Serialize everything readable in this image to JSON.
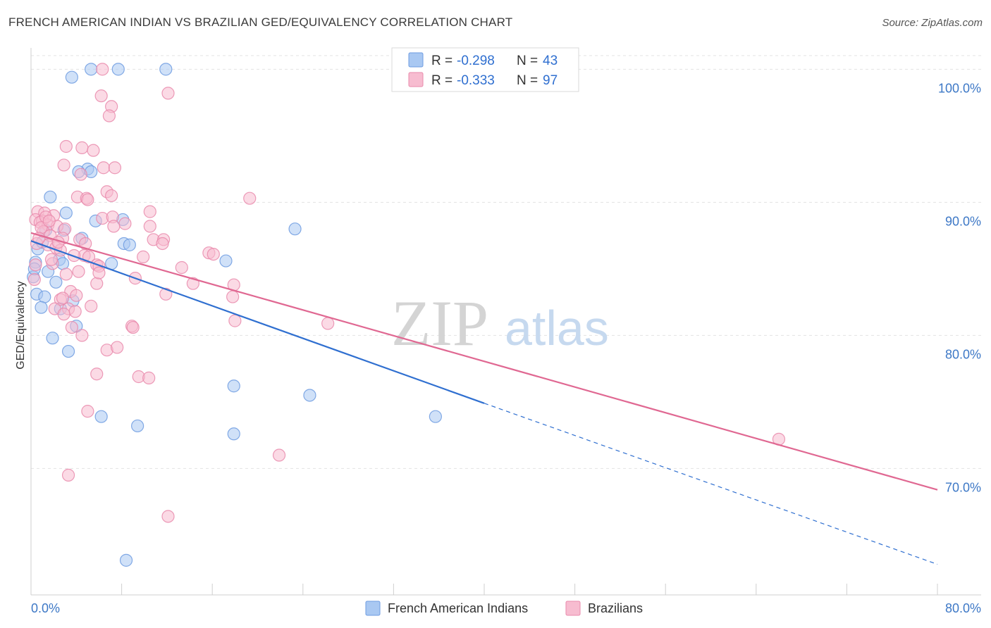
{
  "title": "FRENCH AMERICAN INDIAN VS BRAZILIAN GED/EQUIVALENCY CORRELATION CHART",
  "source": "Source: ZipAtlas.com",
  "watermark": {
    "zip": "ZIP",
    "atlas": "atlas"
  },
  "legend": {
    "rows": [
      {
        "r_label": "R =",
        "r_value": "-0.298",
        "n_label": "N =",
        "n_value": "43",
        "color": "#a9c8f2",
        "stroke": "#6d9be0"
      },
      {
        "r_label": "R =",
        "r_value": "-0.333",
        "n_label": "N =",
        "n_value": "97",
        "color": "#f7bcd0",
        "stroke": "#e98aab"
      }
    ]
  },
  "bottom_legend": [
    {
      "label": "French American Indians",
      "color": "#a9c8f2",
      "stroke": "#6d9be0"
    },
    {
      "label": "Brazilians",
      "color": "#f7bcd0",
      "stroke": "#e98aab"
    }
  ],
  "chart_data": {
    "type": "scatter",
    "title": "FRENCH AMERICAN INDIAN VS BRAZILIAN GED/EQUIVALENCY CORRELATION CHART",
    "xlabel": "",
    "ylabel": "GED/Equivalency",
    "xlim": [
      0,
      80
    ],
    "ylim": [
      60.5,
      101.5
    ],
    "x_tick_labels": [
      "0.0%",
      "80.0%"
    ],
    "y_ticks": [
      70,
      80,
      90,
      100
    ],
    "y_tick_labels": [
      "70.0%",
      "80.0%",
      "90.0%",
      "100.0%"
    ],
    "grid": true,
    "legend_position": "top-center",
    "series": [
      {
        "name": "French American Indians",
        "color": "#6d9be0",
        "fill": "#a9c8f2",
        "trend": {
          "x0": 0,
          "y0": 87.1,
          "x1": 40,
          "y1": 74.9,
          "dash_x1": 80,
          "dash_y1": 62.8
        },
        "points": [
          [
            5.3,
            100
          ],
          [
            7.7,
            100
          ],
          [
            11.9,
            100
          ],
          [
            3.6,
            99.4
          ],
          [
            5.0,
            92.5
          ],
          [
            5.3,
            92.3
          ],
          [
            4.2,
            92.3
          ],
          [
            1.7,
            90.4
          ],
          [
            3.1,
            89.2
          ],
          [
            5.7,
            88.6
          ],
          [
            8.1,
            88.7
          ],
          [
            23.3,
            88.0
          ],
          [
            1.3,
            87.9
          ],
          [
            2.9,
            87.9
          ],
          [
            4.5,
            87.3
          ],
          [
            8.2,
            86.9
          ],
          [
            8.7,
            86.8
          ],
          [
            0.6,
            86.5
          ],
          [
            2.5,
            85.7
          ],
          [
            2.8,
            85.4
          ],
          [
            7.1,
            85.4
          ],
          [
            17.2,
            85.6
          ],
          [
            0.4,
            85.5
          ],
          [
            1.5,
            84.8
          ],
          [
            0.2,
            84.4
          ],
          [
            2.2,
            84.0
          ],
          [
            0.5,
            83.1
          ],
          [
            1.2,
            82.9
          ],
          [
            3.7,
            82.6
          ],
          [
            0.9,
            82.1
          ],
          [
            2.6,
            82.0
          ],
          [
            4.0,
            80.7
          ],
          [
            1.9,
            79.8
          ],
          [
            3.3,
            78.8
          ],
          [
            17.9,
            76.2
          ],
          [
            24.6,
            75.5
          ],
          [
            6.2,
            73.9
          ],
          [
            9.4,
            73.2
          ],
          [
            35.7,
            73.9
          ],
          [
            17.9,
            72.6
          ],
          [
            8.4,
            63.1
          ],
          [
            0.3,
            85.0
          ],
          [
            1.0,
            87.0
          ]
        ]
      },
      {
        "name": "Brazilians",
        "color": "#e98aab",
        "fill": "#f7bcd0",
        "trend": {
          "x0": 0,
          "y0": 87.7,
          "x1": 80,
          "y1": 68.4
        },
        "points": [
          [
            6.3,
            100
          ],
          [
            12.1,
            98.2
          ],
          [
            6.2,
            98.0
          ],
          [
            7.1,
            97.2
          ],
          [
            6.9,
            96.5
          ],
          [
            3.1,
            94.2
          ],
          [
            4.5,
            94.1
          ],
          [
            5.5,
            93.9
          ],
          [
            2.9,
            92.8
          ],
          [
            6.4,
            92.6
          ],
          [
            7.4,
            92.6
          ],
          [
            4.4,
            92.1
          ],
          [
            6.7,
            90.8
          ],
          [
            7.1,
            90.5
          ],
          [
            4.1,
            90.4
          ],
          [
            4.9,
            90.3
          ],
          [
            5.0,
            90.2
          ],
          [
            19.3,
            90.3
          ],
          [
            0.6,
            89.3
          ],
          [
            1.2,
            89.2
          ],
          [
            2.0,
            89.0
          ],
          [
            0.4,
            88.7
          ],
          [
            1.0,
            88.6
          ],
          [
            6.3,
            88.8
          ],
          [
            7.2,
            88.9
          ],
          [
            10.5,
            89.3
          ],
          [
            8.3,
            88.4
          ],
          [
            0.8,
            88.5
          ],
          [
            1.5,
            88.3
          ],
          [
            2.3,
            88.2
          ],
          [
            3.0,
            88.0
          ],
          [
            1.1,
            87.8
          ],
          [
            7.3,
            88.2
          ],
          [
            10.5,
            88.2
          ],
          [
            1.7,
            87.5
          ],
          [
            2.8,
            87.3
          ],
          [
            4.3,
            87.2
          ],
          [
            4.8,
            86.9
          ],
          [
            10.8,
            87.2
          ],
          [
            11.7,
            87.2
          ],
          [
            11.6,
            86.9
          ],
          [
            1.5,
            86.8
          ],
          [
            2.2,
            86.6
          ],
          [
            2.6,
            86.4
          ],
          [
            4.7,
            86.0
          ],
          [
            5.1,
            85.9
          ],
          [
            9.9,
            85.9
          ],
          [
            15.7,
            86.2
          ],
          [
            16.1,
            86.1
          ],
          [
            1.9,
            85.4
          ],
          [
            5.8,
            85.3
          ],
          [
            6.0,
            85.2
          ],
          [
            13.3,
            85.1
          ],
          [
            0.4,
            85.3
          ],
          [
            3.1,
            84.6
          ],
          [
            4.2,
            84.8
          ],
          [
            9.2,
            84.3
          ],
          [
            14.3,
            83.9
          ],
          [
            17.9,
            83.8
          ],
          [
            5.8,
            83.9
          ],
          [
            0.3,
            84.2
          ],
          [
            3.5,
            83.3
          ],
          [
            11.9,
            83.1
          ],
          [
            17.8,
            82.9
          ],
          [
            2.6,
            82.7
          ],
          [
            2.1,
            82.0
          ],
          [
            3.3,
            82.0
          ],
          [
            3.9,
            81.8
          ],
          [
            5.3,
            82.2
          ],
          [
            2.9,
            81.6
          ],
          [
            18.0,
            81.1
          ],
          [
            26.2,
            80.9
          ],
          [
            8.9,
            80.7
          ],
          [
            9.0,
            80.6
          ],
          [
            3.6,
            80.6
          ],
          [
            4.5,
            80.0
          ],
          [
            6.7,
            78.9
          ],
          [
            7.6,
            79.1
          ],
          [
            5.8,
            77.1
          ],
          [
            9.5,
            76.9
          ],
          [
            10.4,
            76.8
          ],
          [
            5.0,
            74.3
          ],
          [
            66.0,
            72.2
          ],
          [
            21.9,
            71.0
          ],
          [
            3.3,
            69.5
          ],
          [
            12.1,
            66.4
          ],
          [
            1.3,
            88.9
          ],
          [
            0.9,
            88.1
          ],
          [
            2.4,
            87.0
          ],
          [
            3.8,
            86.0
          ],
          [
            0.5,
            86.9
          ],
          [
            1.8,
            85.7
          ],
          [
            4.0,
            83.0
          ],
          [
            6.0,
            84.7
          ],
          [
            2.8,
            82.8
          ],
          [
            1.6,
            88.6
          ],
          [
            0.7,
            87.3
          ]
        ]
      }
    ]
  }
}
